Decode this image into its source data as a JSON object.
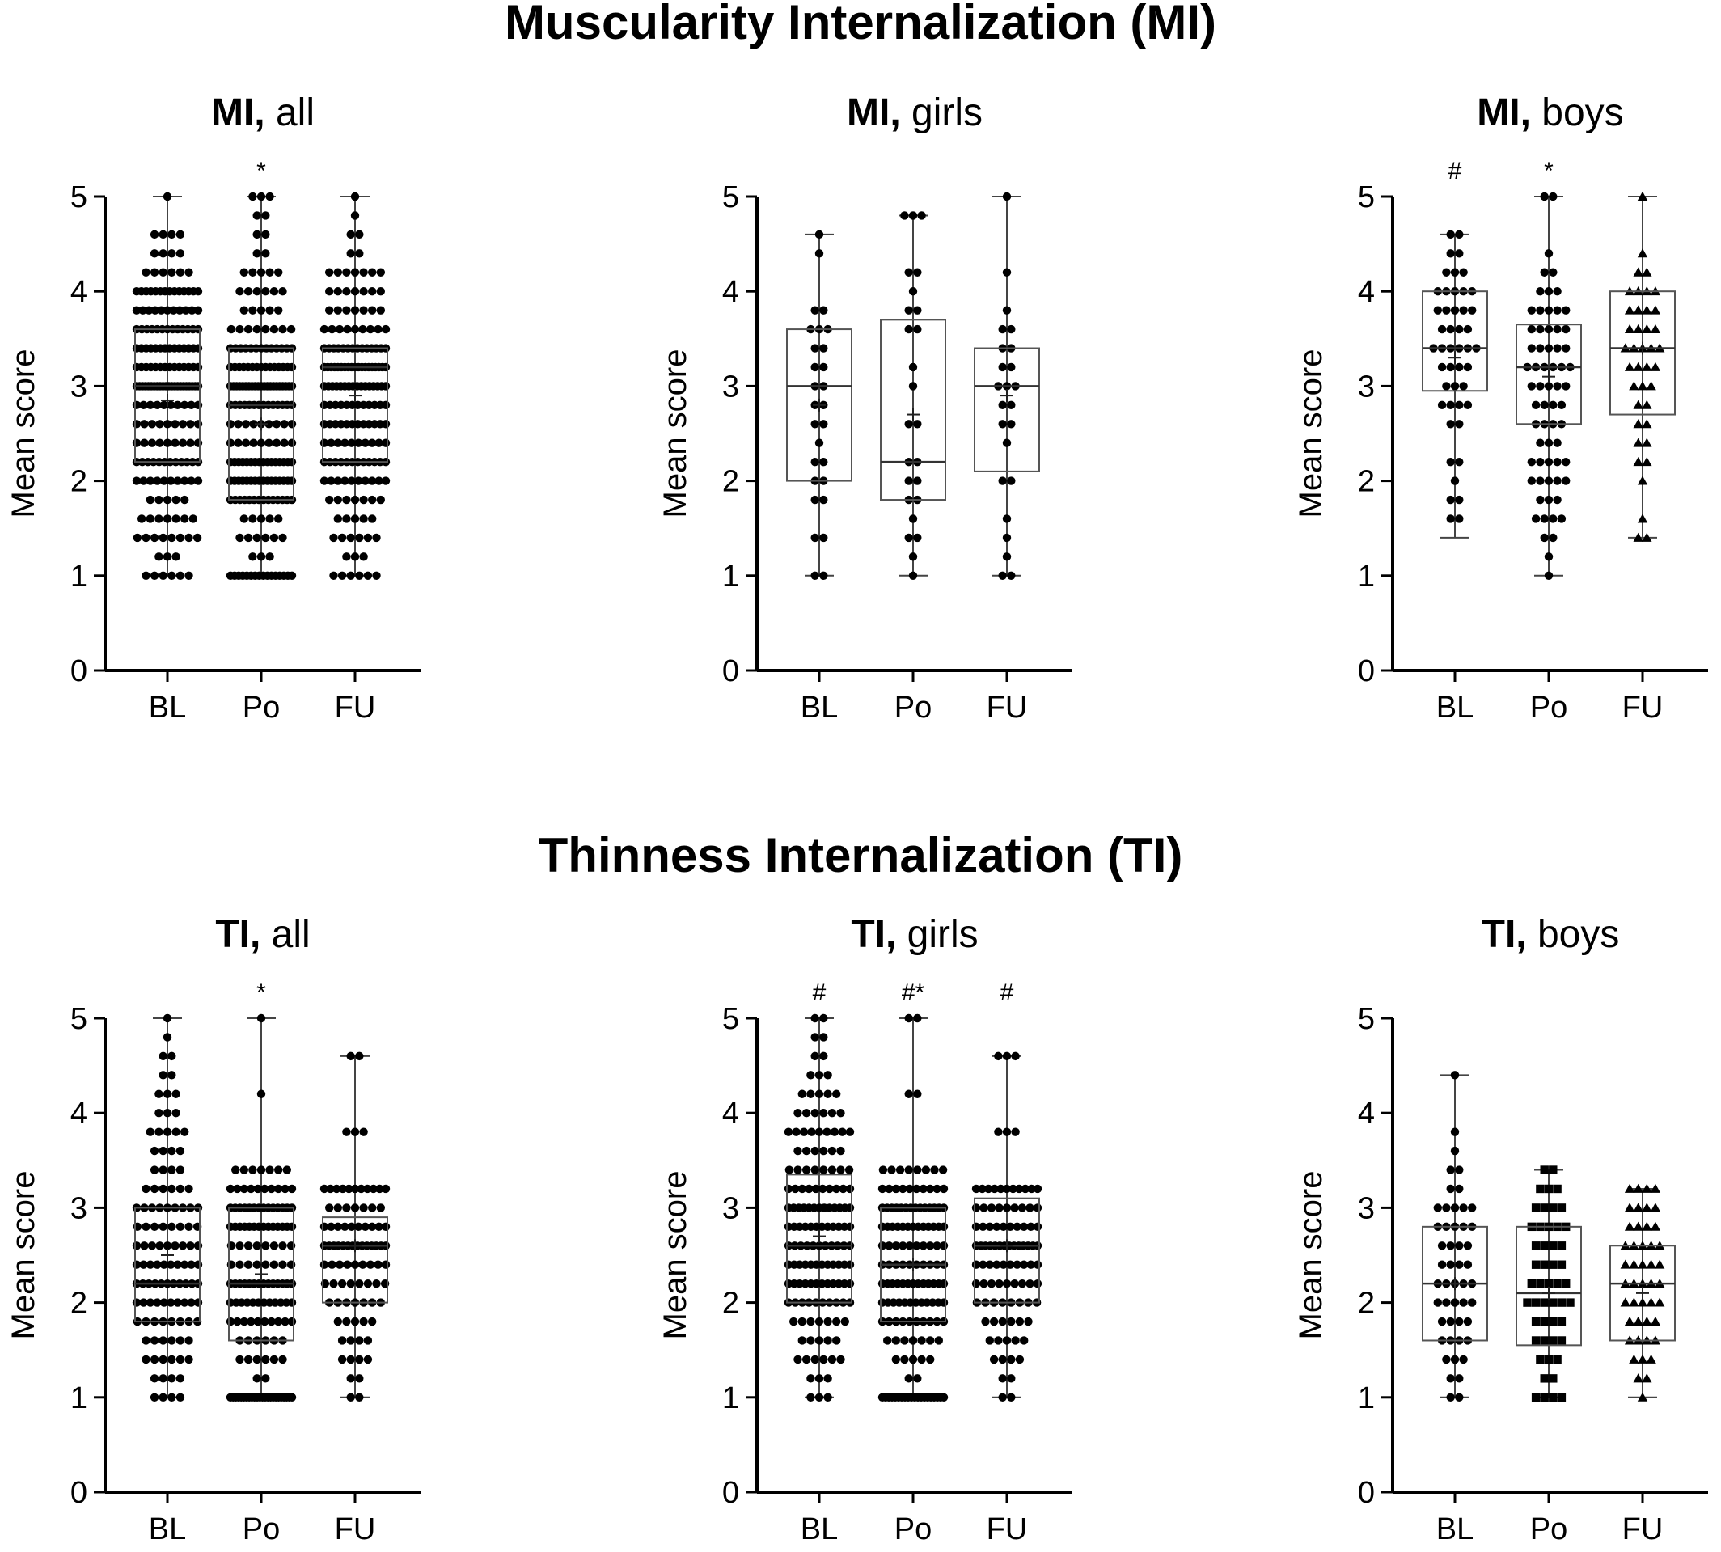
{
  "sections": [
    {
      "title": "Muscularity Internalization (MI)"
    },
    {
      "title": "Thinness Internalization  (TI)"
    }
  ],
  "chart_data": [
    {
      "type": "box",
      "title": "MI, all",
      "title_bold": "MI,",
      "title_rest": " all",
      "ylabel": "Mean score",
      "ylim": [
        0,
        5
      ],
      "yticks": [
        "0",
        "1",
        "2",
        "3",
        "4",
        "5"
      ],
      "categories": [
        "BL",
        "Po",
        "FU"
      ],
      "annotations": [
        "",
        "*",
        ""
      ],
      "marker": "circle",
      "boxes": [
        {
          "min": 1.0,
          "q1": 2.2,
          "median": 3.0,
          "q3": 3.6,
          "max": 5.0,
          "mean": 2.85,
          "points": {
            "1.0": 6,
            "1.2": 3,
            "1.4": 8,
            "1.6": 7,
            "1.8": 5,
            "2.0": 10,
            "2.2": 12,
            "2.4": 9,
            "2.6": 9,
            "2.8": 10,
            "3.0": 22,
            "3.2": 14,
            "3.4": 14,
            "3.6": 13,
            "3.8": 11,
            "4.0": 14,
            "4.2": 6,
            "4.4": 4,
            "4.6": 4,
            "5.0": 1
          }
        },
        {
          "min": 1.0,
          "q1": 1.8,
          "median": 2.8,
          "q3": 3.4,
          "max": 5.0,
          "mean": 2.6,
          "points": {
            "1.0": 16,
            "1.2": 3,
            "1.4": 6,
            "1.6": 5,
            "1.8": 14,
            "2.0": 16,
            "2.2": 16,
            "2.4": 9,
            "2.6": 9,
            "2.8": 14,
            "3.0": 21,
            "3.2": 15,
            "3.4": 13,
            "3.6": 8,
            "3.8": 5,
            "4.0": 6,
            "4.2": 5,
            "4.4": 2,
            "4.6": 2,
            "4.8": 2,
            "5.0": 3
          }
        },
        {
          "min": 1.0,
          "q1": 2.2,
          "median": 3.2,
          "q3": 3.4,
          "max": 5.0,
          "mean": 2.9,
          "points": {
            "1.0": 6,
            "1.2": 3,
            "1.4": 6,
            "1.6": 5,
            "1.8": 7,
            "2.0": 10,
            "2.2": 12,
            "2.4": 10,
            "2.6": 12,
            "2.8": 12,
            "3.0": 16,
            "3.2": 19,
            "3.4": 14,
            "3.6": 9,
            "3.8": 7,
            "4.0": 7,
            "4.2": 7,
            "4.4": 2,
            "4.6": 2,
            "4.8": 1,
            "5.0": 1
          }
        }
      ]
    },
    {
      "type": "box",
      "title": "MI, girls",
      "title_bold": "MI,",
      "title_rest": " girls",
      "ylabel": "Mean score",
      "ylim": [
        0,
        5
      ],
      "yticks": [
        "0",
        "1",
        "2",
        "3",
        "4",
        "5"
      ],
      "categories": [
        "BL",
        "Po",
        "FU"
      ],
      "annotations": [
        "",
        "",
        ""
      ],
      "marker": "circle",
      "boxes": [
        {
          "min": 1.0,
          "q1": 2.0,
          "median": 3.0,
          "q3": 3.6,
          "max": 4.6,
          "mean": 2.8,
          "points": {
            "1.0": 2,
            "1.4": 2,
            "1.8": 2,
            "2.0": 2,
            "2.2": 2,
            "2.4": 1,
            "2.6": 2,
            "2.8": 2,
            "3.0": 2,
            "3.2": 2,
            "3.4": 2,
            "3.6": 3,
            "3.8": 2,
            "4.4": 1,
            "4.6": 1
          }
        },
        {
          "min": 1.0,
          "q1": 1.8,
          "median": 2.2,
          "q3": 3.7,
          "max": 4.8,
          "mean": 2.7,
          "points": {
            "1.0": 1,
            "1.2": 1,
            "1.4": 2,
            "1.6": 1,
            "1.8": 2,
            "2.0": 2,
            "2.2": 2,
            "2.6": 2,
            "3.0": 1,
            "3.2": 1,
            "3.6": 2,
            "3.8": 2,
            "4.0": 1,
            "4.2": 2,
            "4.8": 3
          }
        },
        {
          "min": 1.0,
          "q1": 2.1,
          "median": 3.0,
          "q3": 3.4,
          "max": 5.0,
          "mean": 2.9,
          "points": {
            "1.0": 2,
            "1.2": 1,
            "1.4": 1,
            "1.6": 1,
            "2.0": 2,
            "2.4": 1,
            "2.6": 2,
            "2.8": 2,
            "3.0": 3,
            "3.2": 2,
            "3.4": 2,
            "3.6": 2,
            "3.8": 1,
            "4.2": 1,
            "5.0": 1
          }
        }
      ]
    },
    {
      "type": "box",
      "title": "MI, boys",
      "title_bold": "MI,",
      "title_rest": " boys",
      "ylabel": "Mean score",
      "ylim": [
        0,
        5
      ],
      "yticks": [
        "0",
        "1",
        "2",
        "3",
        "4",
        "5"
      ],
      "categories": [
        "BL",
        "Po",
        "FU"
      ],
      "annotations": [
        "#",
        "*",
        ""
      ],
      "marker": [
        "circle",
        "circle",
        "triangle"
      ],
      "boxes": [
        {
          "min": 1.4,
          "q1": 2.95,
          "median": 3.4,
          "q3": 4.0,
          "max": 4.6,
          "mean": 3.3,
          "points": {
            "1.6": 2,
            "1.8": 2,
            "2.0": 1,
            "2.2": 2,
            "2.6": 2,
            "2.8": 4,
            "3.0": 3,
            "3.2": 4,
            "3.4": 6,
            "3.6": 4,
            "3.8": 5,
            "4.0": 5,
            "4.2": 3,
            "4.4": 2,
            "4.6": 2
          }
        },
        {
          "min": 1.0,
          "q1": 2.6,
          "median": 3.2,
          "q3": 3.65,
          "max": 5.0,
          "mean": 3.1,
          "points": {
            "1.0": 1,
            "1.2": 1,
            "1.4": 2,
            "1.6": 4,
            "1.8": 3,
            "2.0": 5,
            "2.2": 5,
            "2.4": 3,
            "2.6": 4,
            "2.8": 4,
            "3.0": 5,
            "3.2": 6,
            "3.4": 5,
            "3.6": 5,
            "3.8": 5,
            "4.0": 3,
            "4.2": 2,
            "4.4": 1,
            "5.0": 2
          }
        },
        {
          "min": 1.4,
          "q1": 2.7,
          "median": 3.4,
          "q3": 4.0,
          "max": 5.0,
          "mean": 3.4,
          "points": {
            "1.4": 2,
            "1.6": 1,
            "2.0": 1,
            "2.2": 2,
            "2.4": 2,
            "2.6": 2,
            "2.8": 2,
            "3.0": 3,
            "3.2": 4,
            "3.4": 5,
            "3.6": 4,
            "3.8": 4,
            "4.0": 4,
            "4.2": 2,
            "4.4": 1,
            "5.0": 1
          }
        }
      ]
    },
    {
      "type": "box",
      "title": "TI, all",
      "title_bold": "TI,",
      "title_rest": " all",
      "ylabel": "Mean score",
      "ylim": [
        0,
        5
      ],
      "yticks": [
        "0",
        "1",
        "2",
        "3",
        "4",
        "5"
      ],
      "categories": [
        "BL",
        "Po",
        "FU"
      ],
      "annotations": [
        "",
        "*",
        ""
      ],
      "marker": "circle",
      "boxes": [
        {
          "min": 1.0,
          "q1": 1.8,
          "median": 2.2,
          "q3": 3.0,
          "max": 5.0,
          "mean": 2.5,
          "points": {
            "1.0": 4,
            "1.2": 4,
            "1.4": 6,
            "1.6": 6,
            "1.8": 8,
            "2.0": 10,
            "2.2": 11,
            "2.4": 10,
            "2.6": 9,
            "2.8": 8,
            "3.0": 9,
            "3.2": 6,
            "3.4": 4,
            "3.6": 4,
            "3.8": 5,
            "4.0": 3,
            "4.2": 3,
            "4.4": 2,
            "4.6": 2,
            "4.8": 1,
            "5.0": 1
          }
        },
        {
          "min": 1.0,
          "q1": 1.6,
          "median": 2.2,
          "q3": 3.0,
          "max": 5.0,
          "mean": 2.3,
          "points": {
            "1.0": 24,
            "1.2": 2,
            "1.4": 6,
            "1.6": 6,
            "1.8": 10,
            "2.0": 12,
            "2.2": 14,
            "2.4": 8,
            "2.6": 8,
            "2.8": 14,
            "3.0": 14,
            "3.2": 10,
            "3.4": 7,
            "4.2": 1,
            "5.0": 1
          }
        },
        {
          "min": 1.0,
          "q1": 2.0,
          "median": 2.6,
          "q3": 2.9,
          "max": 4.6,
          "mean": 2.6,
          "points": {
            "1.0": 2,
            "1.2": 2,
            "1.4": 4,
            "1.6": 4,
            "1.8": 5,
            "2.0": 7,
            "2.2": 8,
            "2.4": 9,
            "2.6": 14,
            "2.8": 10,
            "3.0": 7,
            "3.2": 11,
            "3.8": 3,
            "4.6": 2
          }
        }
      ]
    },
    {
      "type": "box",
      "title": "TI, girls",
      "title_bold": "TI,",
      "title_rest": " girls",
      "ylabel": "Mean score",
      "ylim": [
        0,
        5
      ],
      "yticks": [
        "0",
        "1",
        "2",
        "3",
        "4",
        "5"
      ],
      "categories": [
        "BL",
        "Po",
        "FU"
      ],
      "annotations": [
        "#",
        "#*",
        "#"
      ],
      "marker": "circle",
      "boxes": [
        {
          "min": 1.0,
          "q1": 2.0,
          "median": 2.6,
          "q3": 3.35,
          "max": 5.0,
          "mean": 2.7,
          "points": {
            "1.0": 3,
            "1.2": 3,
            "1.4": 6,
            "1.6": 5,
            "1.8": 7,
            "2.0": 10,
            "2.2": 12,
            "2.4": 12,
            "2.6": 11,
            "2.8": 12,
            "3.0": 13,
            "3.2": 10,
            "3.4": 8,
            "3.6": 6,
            "3.8": 9,
            "4.0": 6,
            "4.2": 5,
            "4.4": 3,
            "4.6": 2,
            "4.8": 2,
            "5.0": 2
          }
        },
        {
          "min": 1.0,
          "q1": 1.8,
          "median": 2.4,
          "q3": 3.0,
          "max": 5.0,
          "mean": 2.4,
          "points": {
            "1.0": 20,
            "1.2": 2,
            "1.4": 5,
            "1.6": 7,
            "1.8": 10,
            "2.0": 12,
            "2.2": 13,
            "2.4": 10,
            "2.6": 10,
            "2.8": 13,
            "3.0": 14,
            "3.2": 10,
            "3.4": 8,
            "4.2": 2,
            "5.0": 2
          }
        },
        {
          "min": 1.0,
          "q1": 2.0,
          "median": 2.6,
          "q3": 3.1,
          "max": 4.6,
          "mean": 2.6,
          "points": {
            "1.0": 2,
            "1.2": 2,
            "1.4": 4,
            "1.6": 5,
            "1.8": 6,
            "2.0": 8,
            "2.2": 9,
            "2.4": 10,
            "2.6": 14,
            "2.8": 10,
            "3.0": 9,
            "3.2": 11,
            "3.8": 3,
            "4.6": 3
          }
        }
      ]
    },
    {
      "type": "box",
      "title": "TI, boys",
      "title_bold": "TI,",
      "title_rest": " boys",
      "ylabel": "Mean score",
      "ylim": [
        0,
        5
      ],
      "yticks": [
        "0",
        "1",
        "2",
        "3",
        "4",
        "5"
      ],
      "categories": [
        "BL",
        "Po",
        "FU"
      ],
      "annotations": [
        "",
        "",
        ""
      ],
      "marker": [
        "circle",
        "square",
        "triangle"
      ],
      "boxes": [
        {
          "min": 1.0,
          "q1": 1.6,
          "median": 2.2,
          "q3": 2.8,
          "max": 4.4,
          "mean": 2.2,
          "points": {
            "1.0": 2,
            "1.2": 2,
            "1.4": 3,
            "1.6": 4,
            "1.8": 4,
            "2.0": 5,
            "2.2": 5,
            "2.4": 4,
            "2.6": 4,
            "2.8": 5,
            "3.0": 5,
            "3.2": 2,
            "3.4": 2,
            "3.6": 1,
            "3.8": 1,
            "4.4": 1
          }
        },
        {
          "min": 1.0,
          "q1": 1.55,
          "median": 2.1,
          "q3": 2.8,
          "max": 3.4,
          "mean": 2.1,
          "points": {
            "1.0": 4,
            "1.2": 2,
            "1.4": 3,
            "1.6": 4,
            "1.8": 4,
            "2.0": 6,
            "2.2": 5,
            "2.4": 4,
            "2.6": 4,
            "2.8": 5,
            "3.0": 4,
            "3.2": 3,
            "3.4": 2
          }
        },
        {
          "min": 1.0,
          "q1": 1.6,
          "median": 2.2,
          "q3": 2.6,
          "max": 3.2,
          "mean": 2.1,
          "points": {
            "1.0": 1,
            "1.2": 2,
            "1.4": 3,
            "1.6": 4,
            "1.8": 4,
            "2.0": 5,
            "2.2": 5,
            "2.4": 5,
            "2.6": 5,
            "2.8": 4,
            "3.0": 4,
            "3.2": 4
          }
        }
      ]
    }
  ]
}
